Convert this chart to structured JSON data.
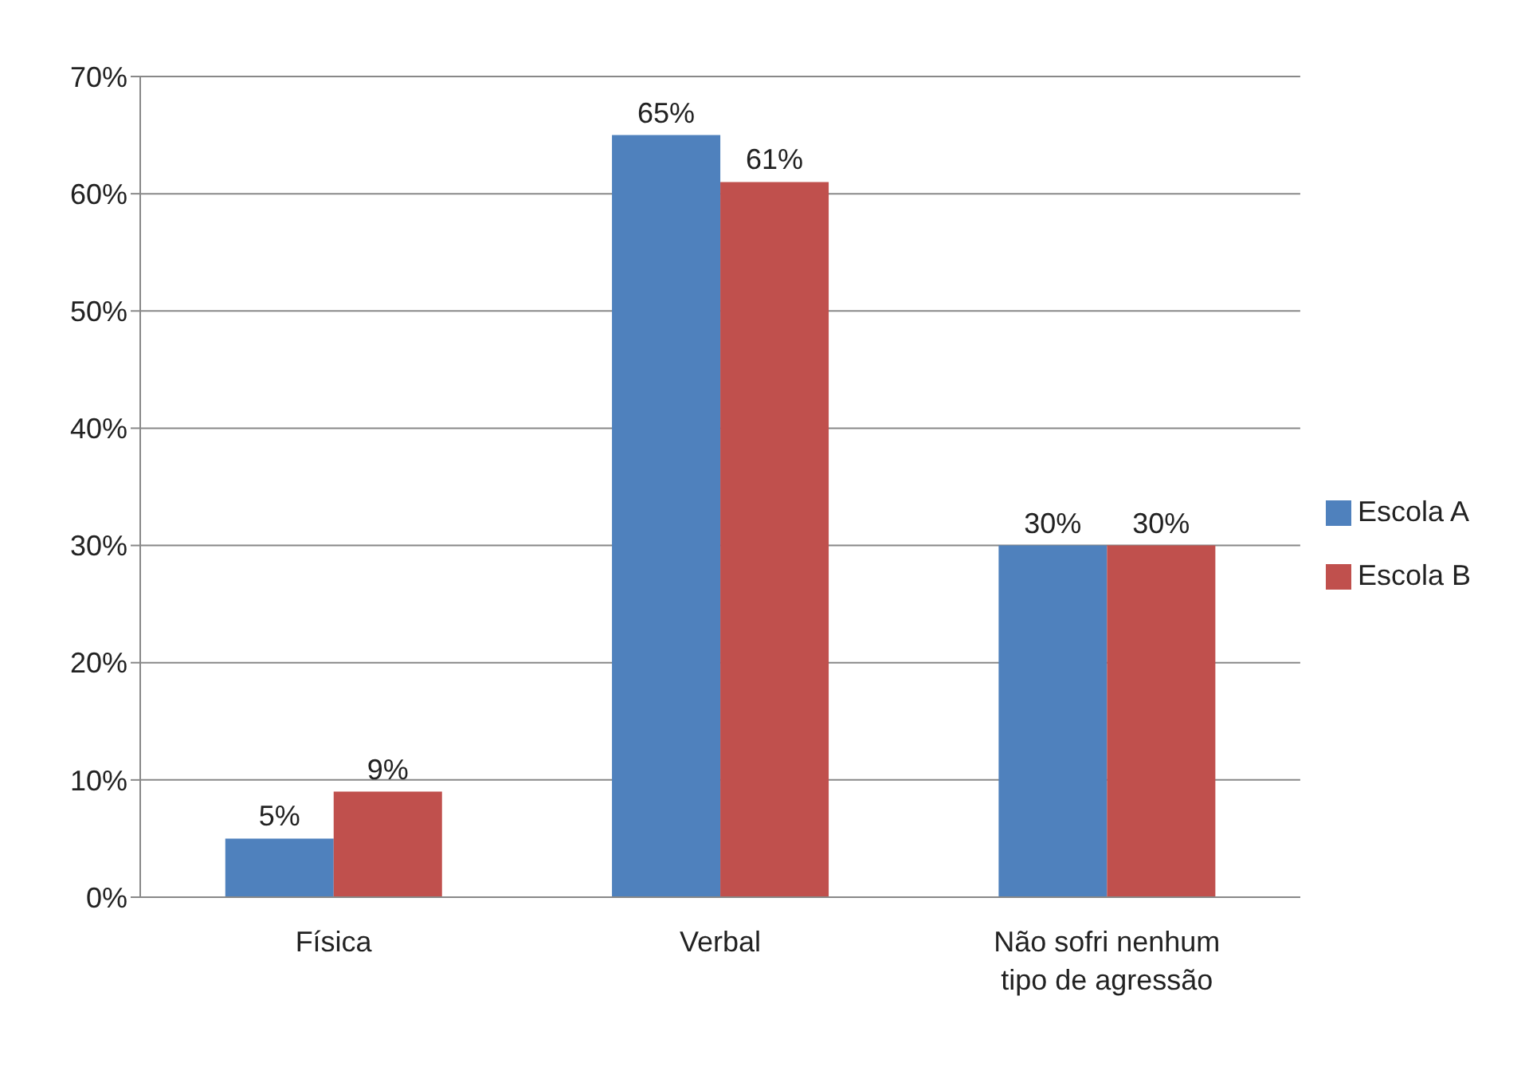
{
  "chart_data": {
    "type": "bar",
    "categories": [
      "Física",
      "Verbal",
      "Não sofri nenhum tipo de agressão"
    ],
    "series": [
      {
        "name": "Escola A",
        "color": "#4f81bd",
        "values": [
          5,
          65,
          30
        ],
        "value_labels": [
          "5%",
          "65%",
          "30%"
        ]
      },
      {
        "name": "Escola B",
        "color": "#c0504d",
        "values": [
          9,
          61,
          30
        ],
        "value_labels": [
          "9%",
          "61%",
          "30%"
        ]
      }
    ],
    "ylim": [
      0,
      70
    ],
    "yticks": [
      {
        "value": 0,
        "label": "0%"
      },
      {
        "value": 10,
        "label": "10%"
      },
      {
        "value": 20,
        "label": "20%"
      },
      {
        "value": 30,
        "label": "30%"
      },
      {
        "value": 40,
        "label": "40%"
      },
      {
        "value": 50,
        "label": "50%"
      },
      {
        "value": 60,
        "label": "60%"
      },
      {
        "value": 70,
        "label": "70%"
      }
    ],
    "grid": "y",
    "legend": "right"
  }
}
